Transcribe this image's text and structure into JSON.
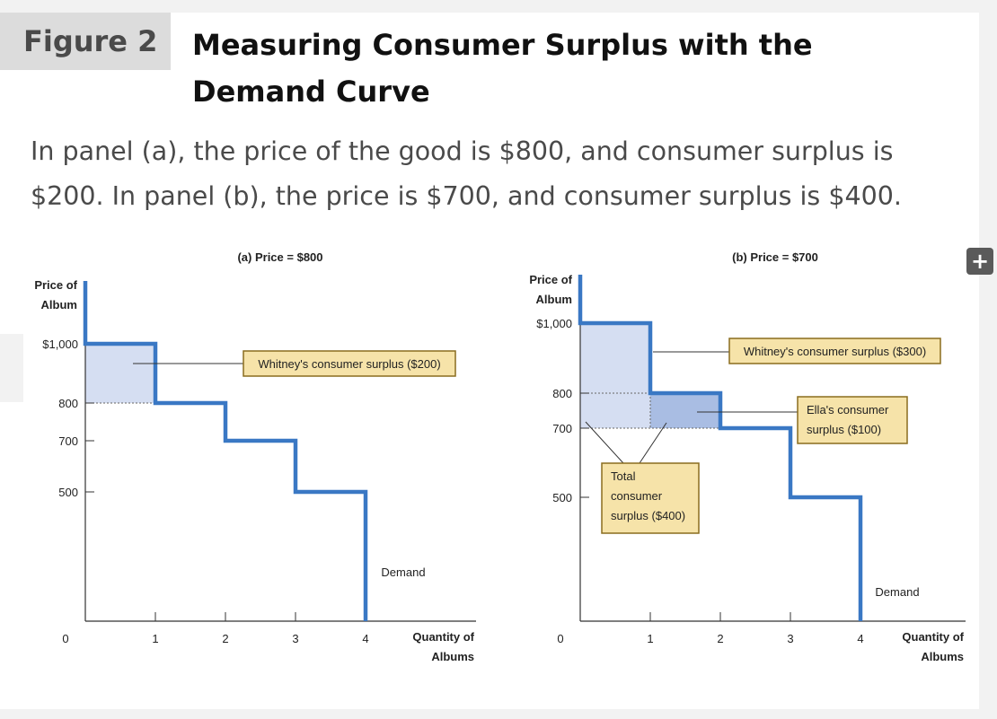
{
  "figure": {
    "label": "Figure 2",
    "title_line1": "Measuring Consumer Surplus with the",
    "title_line2": "Demand Curve"
  },
  "caption": {
    "line1": "In panel (a), the price of the good is $800, and consumer surplus is",
    "line2": "$200. In panel (b), the price is $700, and consumer surplus is $400."
  },
  "expand_icon": "plus-icon",
  "colors": {
    "demand": "#3a78c4",
    "surplus_light": "#d5def2",
    "surplus_dark": "#a9bde3",
    "note_fill": "#f6e3a9",
    "note_border": "#8a6d1f"
  },
  "chart_data": [
    {
      "type": "line",
      "title": "(a) Price = $800",
      "ylabel_line1": "Price of",
      "ylabel_line2": "Album",
      "xlabel_line1": "Quantity of",
      "xlabel_line2": "Albums",
      "x_ticks": [
        "0",
        "1",
        "2",
        "3",
        "4"
      ],
      "y_ticks": [
        {
          "value": 1000,
          "label": "$1,000"
        },
        {
          "value": 800,
          "label": "800"
        },
        {
          "value": 700,
          "label": "700"
        },
        {
          "value": 500,
          "label": "500"
        }
      ],
      "xlim": [
        0,
        4.6
      ],
      "ylim": [
        0,
        1200
      ],
      "price": 800,
      "demand_steps": [
        {
          "from": 0,
          "to": 1,
          "value": 1000
        },
        {
          "from": 1,
          "to": 2,
          "value": 800
        },
        {
          "from": 2,
          "to": 3,
          "value": 700
        },
        {
          "from": 3,
          "to": 4,
          "value": 500
        }
      ],
      "surplus_areas": [
        {
          "x": [
            0,
            1
          ],
          "y": [
            800,
            1000
          ],
          "shade": "light"
        }
      ],
      "curve_label": "Demand",
      "notes": [
        {
          "lines": [
            "Whitney's consumer surplus ($200)"
          ]
        }
      ]
    },
    {
      "type": "line",
      "title": "(b) Price = $700",
      "ylabel_line1": "Price of",
      "ylabel_line2": "Album",
      "xlabel_line1": "Quantity of",
      "xlabel_line2": "Albums",
      "x_ticks": [
        "0",
        "1",
        "2",
        "3",
        "4"
      ],
      "y_ticks": [
        {
          "value": 1000,
          "label": "$1,000"
        },
        {
          "value": 800,
          "label": "800"
        },
        {
          "value": 700,
          "label": "700"
        },
        {
          "value": 500,
          "label": "500"
        }
      ],
      "xlim": [
        0,
        5.5
      ],
      "ylim": [
        0,
        1000
      ],
      "price": 700,
      "demand_steps": [
        {
          "from": 0,
          "to": 1,
          "value": 1000
        },
        {
          "from": 1,
          "to": 2,
          "value": 800
        },
        {
          "from": 2,
          "to": 3,
          "value": 700
        },
        {
          "from": 3,
          "to": 4,
          "value": 500
        }
      ],
      "surplus_areas": [
        {
          "x": [
            0,
            1
          ],
          "y": [
            700,
            1000
          ],
          "shade": "light"
        },
        {
          "x": [
            1,
            2
          ],
          "y": [
            700,
            800
          ],
          "shade": "dark"
        }
      ],
      "curve_label": "Demand",
      "notes": [
        {
          "lines": [
            "Whitney's consumer surplus ($300)"
          ]
        },
        {
          "lines": [
            "Ella's consumer",
            "surplus ($100)"
          ]
        },
        {
          "lines": [
            "Total",
            "consumer",
            "surplus ($400)"
          ]
        }
      ]
    }
  ]
}
